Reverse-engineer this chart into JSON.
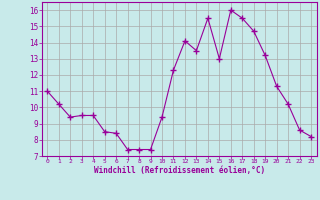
{
  "x": [
    0,
    1,
    2,
    3,
    4,
    5,
    6,
    7,
    8,
    9,
    10,
    11,
    12,
    13,
    14,
    15,
    16,
    17,
    18,
    19,
    20,
    21,
    22,
    23
  ],
  "y": [
    11,
    10.2,
    9.4,
    9.5,
    9.5,
    8.5,
    8.4,
    7.4,
    7.4,
    7.4,
    9.4,
    12.3,
    14.1,
    13.5,
    15.5,
    13.0,
    16.0,
    15.5,
    14.7,
    13.2,
    11.3,
    10.2,
    8.6,
    8.2
  ],
  "line_color": "#990099",
  "marker": "+",
  "marker_size": 4,
  "bg_color": "#c8eaea",
  "grid_color": "#aaaaaa",
  "xlabel": "Windchill (Refroidissement éolien,°C)",
  "xlabel_color": "#990099",
  "tick_color": "#990099",
  "spine_color": "#990099",
  "ylim": [
    7,
    16.5
  ],
  "xlim": [
    -0.5,
    23.5
  ],
  "yticks": [
    7,
    8,
    9,
    10,
    11,
    12,
    13,
    14,
    15,
    16
  ],
  "xticks": [
    0,
    1,
    2,
    3,
    4,
    5,
    6,
    7,
    8,
    9,
    10,
    11,
    12,
    13,
    14,
    15,
    16,
    17,
    18,
    19,
    20,
    21,
    22,
    23
  ],
  "figwidth": 3.2,
  "figheight": 2.0,
  "dpi": 100
}
